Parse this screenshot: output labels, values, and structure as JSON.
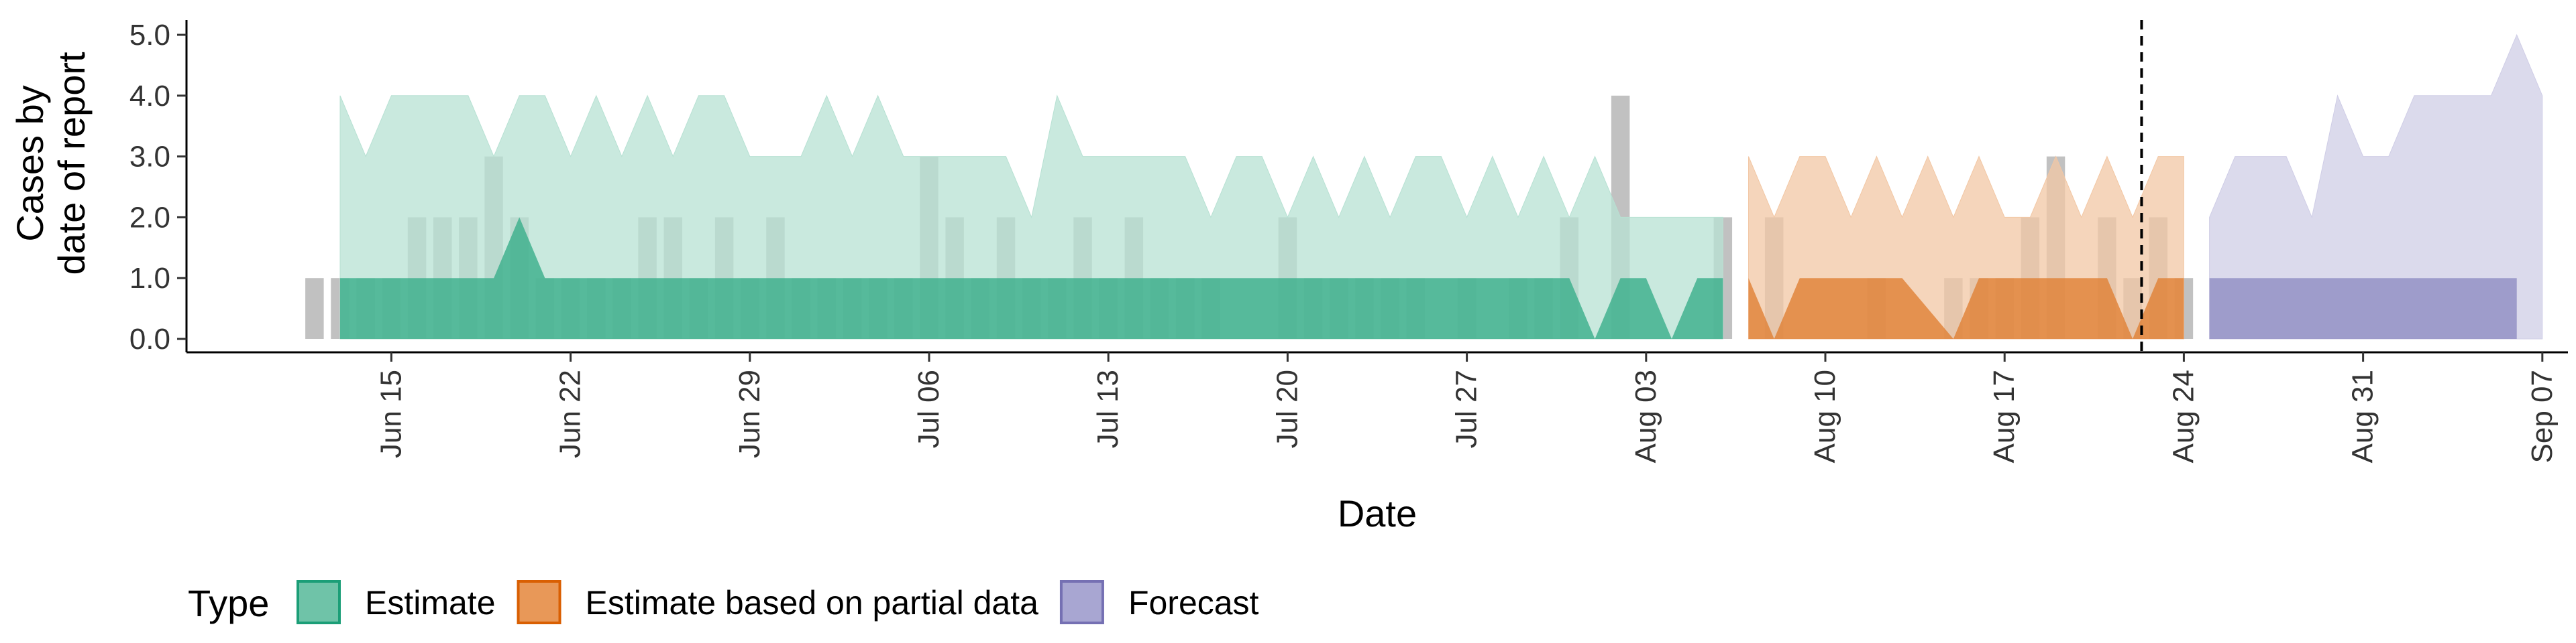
{
  "chart_data": {
    "type": "area",
    "xlabel": "Date",
    "ylabel_lines": [
      "Cases by",
      "date of report"
    ],
    "ylim": [
      0,
      5
    ],
    "y_ticks": [
      "0.0",
      "1.0",
      "2.0",
      "3.0",
      "4.0",
      "5.0"
    ],
    "x_ticks": [
      {
        "date": "2020-06-15",
        "label": "Jun 15"
      },
      {
        "date": "2020-06-22",
        "label": "Jun 22"
      },
      {
        "date": "2020-06-29",
        "label": "Jun 29"
      },
      {
        "date": "2020-07-06",
        "label": "Jul 06"
      },
      {
        "date": "2020-07-13",
        "label": "Jul 13"
      },
      {
        "date": "2020-07-20",
        "label": "Jul 20"
      },
      {
        "date": "2020-07-27",
        "label": "Jul 27"
      },
      {
        "date": "2020-08-03",
        "label": "Aug 03"
      },
      {
        "date": "2020-08-10",
        "label": "Aug 10"
      },
      {
        "date": "2020-08-17",
        "label": "Aug 17"
      },
      {
        "date": "2020-08-24",
        "label": "Aug 24"
      },
      {
        "date": "2020-08-31",
        "label": "Aug 31"
      },
      {
        "date": "2020-09-07",
        "label": "Sep 07"
      }
    ],
    "xlim": [
      "2020-06-07",
      "2020-09-08"
    ],
    "grid": false,
    "vline_date": "2020-08-22",
    "legend": {
      "title": "Type",
      "position": "bottom",
      "items": [
        {
          "label": "Estimate",
          "fill": "#6fc3a8",
          "stroke": "#1b9e77"
        },
        {
          "label": "Estimate based on partial data",
          "fill": "#e89858",
          "stroke": "#d95f02"
        },
        {
          "label": "Forecast",
          "fill": "#a8a6d2",
          "stroke": "#7570b3"
        }
      ]
    },
    "reported_cases": [
      {
        "date": "2020-06-12",
        "value": 1
      },
      {
        "date": "2020-06-13",
        "value": 1
      },
      {
        "date": "2020-06-14",
        "value": 1
      },
      {
        "date": "2020-06-15",
        "value": 1
      },
      {
        "date": "2020-06-16",
        "value": 2
      },
      {
        "date": "2020-06-17",
        "value": 2
      },
      {
        "date": "2020-06-18",
        "value": 2
      },
      {
        "date": "2020-06-19",
        "value": 3
      },
      {
        "date": "2020-06-20",
        "value": 2
      },
      {
        "date": "2020-06-21",
        "value": 1
      },
      {
        "date": "2020-06-22",
        "value": 1
      },
      {
        "date": "2020-06-23",
        "value": 1
      },
      {
        "date": "2020-06-24",
        "value": 1
      },
      {
        "date": "2020-06-25",
        "value": 2
      },
      {
        "date": "2020-06-26",
        "value": 2
      },
      {
        "date": "2020-06-27",
        "value": 1
      },
      {
        "date": "2020-06-28",
        "value": 2
      },
      {
        "date": "2020-06-29",
        "value": 1
      },
      {
        "date": "2020-06-30",
        "value": 2
      },
      {
        "date": "2020-07-01",
        "value": 1
      },
      {
        "date": "2020-07-02",
        "value": 1
      },
      {
        "date": "2020-07-03",
        "value": 1
      },
      {
        "date": "2020-07-04",
        "value": 1
      },
      {
        "date": "2020-07-05",
        "value": 1
      },
      {
        "date": "2020-07-06",
        "value": 3
      },
      {
        "date": "2020-07-07",
        "value": 2
      },
      {
        "date": "2020-07-08",
        "value": 1
      },
      {
        "date": "2020-07-09",
        "value": 2
      },
      {
        "date": "2020-07-10",
        "value": 1
      },
      {
        "date": "2020-07-11",
        "value": 1
      },
      {
        "date": "2020-07-12",
        "value": 2
      },
      {
        "date": "2020-07-13",
        "value": 1
      },
      {
        "date": "2020-07-14",
        "value": 2
      },
      {
        "date": "2020-07-15",
        "value": 1
      },
      {
        "date": "2020-07-16",
        "value": 1
      },
      {
        "date": "2020-07-17",
        "value": 1
      },
      {
        "date": "2020-07-20",
        "value": 2
      },
      {
        "date": "2020-07-21",
        "value": 1
      },
      {
        "date": "2020-07-22",
        "value": 1
      },
      {
        "date": "2020-07-23",
        "value": 1
      },
      {
        "date": "2020-07-24",
        "value": 1
      },
      {
        "date": "2020-07-25",
        "value": 1
      },
      {
        "date": "2020-07-27",
        "value": 1
      },
      {
        "date": "2020-07-29",
        "value": 1
      },
      {
        "date": "2020-07-30",
        "value": 1
      },
      {
        "date": "2020-07-31",
        "value": 2
      },
      {
        "date": "2020-08-02",
        "value": 4
      },
      {
        "date": "2020-08-06",
        "value": 2
      },
      {
        "date": "2020-08-08",
        "value": 2
      },
      {
        "date": "2020-08-12",
        "value": 1
      },
      {
        "date": "2020-08-15",
        "value": 1
      },
      {
        "date": "2020-08-16",
        "value": 1
      },
      {
        "date": "2020-08-17",
        "value": 1
      },
      {
        "date": "2020-08-18",
        "value": 2
      },
      {
        "date": "2020-08-19",
        "value": 3
      },
      {
        "date": "2020-08-21",
        "value": 2
      },
      {
        "date": "2020-08-22",
        "value": 1
      },
      {
        "date": "2020-08-23",
        "value": 2
      },
      {
        "date": "2020-08-24",
        "value": 1
      }
    ],
    "series": [
      {
        "name": "Estimate",
        "fill": "#1b9e77",
        "inner_band": [
          {
            "date": "2020-06-13",
            "lower": 0,
            "upper": 1
          },
          {
            "date": "2020-06-19",
            "lower": 0,
            "upper": 1
          },
          {
            "date": "2020-06-20",
            "lower": 0,
            "upper": 2
          },
          {
            "date": "2020-06-21",
            "lower": 0,
            "upper": 1
          },
          {
            "date": "2020-07-31",
            "lower": 0,
            "upper": 1
          },
          {
            "date": "2020-08-01",
            "lower": 0,
            "upper": 0
          },
          {
            "date": "2020-08-02",
            "lower": 0,
            "upper": 1
          },
          {
            "date": "2020-08-03",
            "lower": 0,
            "upper": 1
          },
          {
            "date": "2020-08-04",
            "lower": 0,
            "upper": 0
          },
          {
            "date": "2020-08-05",
            "lower": 0,
            "upper": 1
          },
          {
            "date": "2020-08-06",
            "lower": 0,
            "upper": 1
          }
        ],
        "outer_band": [
          {
            "date": "2020-06-13",
            "lower": 0,
            "upper": 4
          },
          {
            "date": "2020-06-14",
            "lower": 0,
            "upper": 3
          },
          {
            "date": "2020-06-15",
            "lower": 0,
            "upper": 4
          },
          {
            "date": "2020-06-17",
            "lower": 0,
            "upper": 4
          },
          {
            "date": "2020-06-18",
            "lower": 0,
            "upper": 4
          },
          {
            "date": "2020-06-19",
            "lower": 0,
            "upper": 3
          },
          {
            "date": "2020-06-20",
            "lower": 0,
            "upper": 4
          },
          {
            "date": "2020-06-21",
            "lower": 0,
            "upper": 4
          },
          {
            "date": "2020-06-22",
            "lower": 0,
            "upper": 3
          },
          {
            "date": "2020-06-23",
            "lower": 0,
            "upper": 4
          },
          {
            "date": "2020-06-24",
            "lower": 0,
            "upper": 3
          },
          {
            "date": "2020-06-25",
            "lower": 0,
            "upper": 4
          },
          {
            "date": "2020-06-26",
            "lower": 0,
            "upper": 3
          },
          {
            "date": "2020-06-27",
            "lower": 0,
            "upper": 4
          },
          {
            "date": "2020-06-28",
            "lower": 0,
            "upper": 4
          },
          {
            "date": "2020-06-29",
            "lower": 0,
            "upper": 3
          },
          {
            "date": "2020-07-01",
            "lower": 0,
            "upper": 3
          },
          {
            "date": "2020-07-02",
            "lower": 0,
            "upper": 4
          },
          {
            "date": "2020-07-03",
            "lower": 0,
            "upper": 3
          },
          {
            "date": "2020-07-04",
            "lower": 0,
            "upper": 4
          },
          {
            "date": "2020-07-05",
            "lower": 0,
            "upper": 3
          },
          {
            "date": "2020-07-08",
            "lower": 0,
            "upper": 3
          },
          {
            "date": "2020-07-09",
            "lower": 0,
            "upper": 3
          },
          {
            "date": "2020-07-10",
            "lower": 0,
            "upper": 2
          },
          {
            "date": "2020-07-11",
            "lower": 0,
            "upper": 4
          },
          {
            "date": "2020-07-12",
            "lower": 0,
            "upper": 3
          },
          {
            "date": "2020-07-15",
            "lower": 0,
            "upper": 3
          },
          {
            "date": "2020-07-16",
            "lower": 0,
            "upper": 3
          },
          {
            "date": "2020-07-17",
            "lower": 0,
            "upper": 2
          },
          {
            "date": "2020-07-18",
            "lower": 0,
            "upper": 3
          },
          {
            "date": "2020-07-19",
            "lower": 0,
            "upper": 3
          },
          {
            "date": "2020-07-20",
            "lower": 0,
            "upper": 2
          },
          {
            "date": "2020-07-21",
            "lower": 0,
            "upper": 3
          },
          {
            "date": "2020-07-22",
            "lower": 0,
            "upper": 2
          },
          {
            "date": "2020-07-23",
            "lower": 0,
            "upper": 3
          },
          {
            "date": "2020-07-24",
            "lower": 0,
            "upper": 2
          },
          {
            "date": "2020-07-25",
            "lower": 0,
            "upper": 3
          },
          {
            "date": "2020-07-26",
            "lower": 0,
            "upper": 3
          },
          {
            "date": "2020-07-27",
            "lower": 0,
            "upper": 2
          },
          {
            "date": "2020-07-28",
            "lower": 0,
            "upper": 3
          },
          {
            "date": "2020-07-29",
            "lower": 0,
            "upper": 2
          },
          {
            "date": "2020-07-30",
            "lower": 0,
            "upper": 3
          },
          {
            "date": "2020-07-31",
            "lower": 0,
            "upper": 2
          },
          {
            "date": "2020-08-01",
            "lower": 0,
            "upper": 3
          },
          {
            "date": "2020-08-02",
            "lower": 0,
            "upper": 2
          },
          {
            "date": "2020-08-03",
            "lower": 0,
            "upper": 2
          },
          {
            "date": "2020-08-06",
            "lower": 0,
            "upper": 2
          }
        ]
      },
      {
        "name": "Estimate based on partial data",
        "fill": "#d95f02",
        "inner_band": [
          {
            "date": "2020-08-07",
            "lower": 0,
            "upper": 1
          },
          {
            "date": "2020-08-08",
            "lower": 0,
            "upper": 0
          },
          {
            "date": "2020-08-09",
            "lower": 0,
            "upper": 1
          },
          {
            "date": "2020-08-13",
            "lower": 0,
            "upper": 1
          },
          {
            "date": "2020-08-15",
            "lower": 0,
            "upper": 0
          },
          {
            "date": "2020-08-16",
            "lower": 0,
            "upper": 1
          },
          {
            "date": "2020-08-21",
            "lower": 0,
            "upper": 1
          },
          {
            "date": "2020-08-22",
            "lower": 0,
            "upper": 0
          },
          {
            "date": "2020-08-23",
            "lower": 0,
            "upper": 1
          },
          {
            "date": "2020-08-24",
            "lower": 0,
            "upper": 1
          }
        ],
        "outer_band": [
          {
            "date": "2020-08-07",
            "lower": 0,
            "upper": 3
          },
          {
            "date": "2020-08-08",
            "lower": 0,
            "upper": 2
          },
          {
            "date": "2020-08-09",
            "lower": 0,
            "upper": 3
          },
          {
            "date": "2020-08-10",
            "lower": 0,
            "upper": 3
          },
          {
            "date": "2020-08-11",
            "lower": 0,
            "upper": 2
          },
          {
            "date": "2020-08-12",
            "lower": 0,
            "upper": 3
          },
          {
            "date": "2020-08-13",
            "lower": 0,
            "upper": 2
          },
          {
            "date": "2020-08-14",
            "lower": 0,
            "upper": 3
          },
          {
            "date": "2020-08-15",
            "lower": 0,
            "upper": 2
          },
          {
            "date": "2020-08-16",
            "lower": 0,
            "upper": 3
          },
          {
            "date": "2020-08-17",
            "lower": 0,
            "upper": 2
          },
          {
            "date": "2020-08-18",
            "lower": 0,
            "upper": 2
          },
          {
            "date": "2020-08-19",
            "lower": 0,
            "upper": 3
          },
          {
            "date": "2020-08-20",
            "lower": 0,
            "upper": 2
          },
          {
            "date": "2020-08-21",
            "lower": 0,
            "upper": 3
          },
          {
            "date": "2020-08-22",
            "lower": 0,
            "upper": 2
          },
          {
            "date": "2020-08-23",
            "lower": 0,
            "upper": 3
          },
          {
            "date": "2020-08-24",
            "lower": 0,
            "upper": 3
          }
        ]
      },
      {
        "name": "Forecast",
        "fill": "#7570b3",
        "inner_band": [
          {
            "date": "2020-08-25",
            "lower": 0,
            "upper": 1
          },
          {
            "date": "2020-09-06",
            "lower": 0,
            "upper": 1
          }
        ],
        "outer_band": [
          {
            "date": "2020-08-25",
            "lower": 0,
            "upper": 2
          },
          {
            "date": "2020-08-26",
            "lower": 0,
            "upper": 3
          },
          {
            "date": "2020-08-28",
            "lower": 0,
            "upper": 3
          },
          {
            "date": "2020-08-29",
            "lower": 0,
            "upper": 2
          },
          {
            "date": "2020-08-30",
            "lower": 0,
            "upper": 4
          },
          {
            "date": "2020-08-31",
            "lower": 0,
            "upper": 3
          },
          {
            "date": "2020-09-01",
            "lower": 0,
            "upper": 3
          },
          {
            "date": "2020-09-02",
            "lower": 0,
            "upper": 4
          },
          {
            "date": "2020-09-05",
            "lower": 0,
            "upper": 4
          },
          {
            "date": "2020-09-06",
            "lower": 0,
            "upper": 5
          },
          {
            "date": "2020-09-07",
            "lower": 0,
            "upper": 4
          }
        ]
      }
    ]
  }
}
